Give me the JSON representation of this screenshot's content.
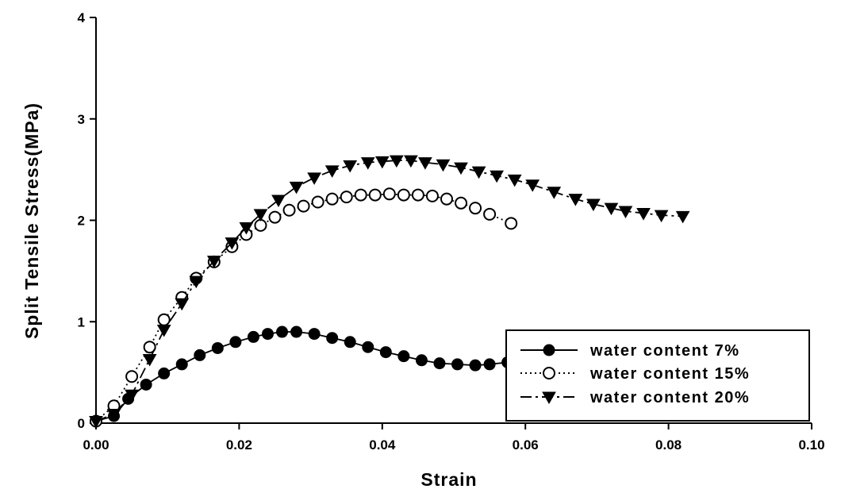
{
  "chart_data": {
    "type": "scatter",
    "xlabel": "Strain",
    "ylabel": "Split Tensile Stress(MPa)",
    "xlim": [
      0,
      0.1
    ],
    "ylim": [
      0,
      4
    ],
    "x_ticks": [
      "0.00",
      "0.02",
      "0.04",
      "0.06",
      "0.08",
      "0.10"
    ],
    "y_ticks": [
      "0",
      "1",
      "2",
      "3",
      "4"
    ],
    "grid": false,
    "legend_position": "bottom-right",
    "series": [
      {
        "name": "water content  7%",
        "marker": "filled-circle",
        "line": "solid",
        "x": [
          0.0,
          0.0025,
          0.0045,
          0.007,
          0.0095,
          0.012,
          0.0145,
          0.017,
          0.0195,
          0.022,
          0.024,
          0.026,
          0.028,
          0.0305,
          0.033,
          0.0355,
          0.038,
          0.0405,
          0.043,
          0.0455,
          0.048,
          0.0505,
          0.053,
          0.055,
          0.0575
        ],
        "y": [
          0.02,
          0.07,
          0.24,
          0.38,
          0.49,
          0.58,
          0.67,
          0.74,
          0.8,
          0.85,
          0.88,
          0.9,
          0.9,
          0.88,
          0.84,
          0.8,
          0.75,
          0.7,
          0.66,
          0.62,
          0.59,
          0.58,
          0.57,
          0.58,
          0.6
        ]
      },
      {
        "name": "water content 15%",
        "marker": "open-circle",
        "line": "dotted",
        "x": [
          0.0,
          0.0025,
          0.005,
          0.0075,
          0.0095,
          0.012,
          0.014,
          0.0165,
          0.019,
          0.021,
          0.023,
          0.025,
          0.027,
          0.029,
          0.031,
          0.033,
          0.035,
          0.037,
          0.039,
          0.041,
          0.043,
          0.045,
          0.047,
          0.049,
          0.051,
          0.053,
          0.055,
          0.058
        ],
        "y": [
          0.02,
          0.17,
          0.46,
          0.75,
          1.02,
          1.24,
          1.43,
          1.59,
          1.74,
          1.86,
          1.95,
          2.03,
          2.1,
          2.14,
          2.18,
          2.21,
          2.23,
          2.25,
          2.25,
          2.26,
          2.25,
          2.25,
          2.24,
          2.21,
          2.17,
          2.12,
          2.06,
          1.97
        ]
      },
      {
        "name": "water content 20%",
        "marker": "filled-triangle-down",
        "line": "dash-dot",
        "x": [
          0.0,
          0.0025,
          0.005,
          0.0075,
          0.0095,
          0.012,
          0.014,
          0.0165,
          0.019,
          0.021,
          0.023,
          0.0255,
          0.028,
          0.0305,
          0.033,
          0.0355,
          0.038,
          0.04,
          0.042,
          0.044,
          0.046,
          0.0485,
          0.051,
          0.0535,
          0.056,
          0.0585,
          0.061,
          0.064,
          0.067,
          0.0695,
          0.072,
          0.074,
          0.0765,
          0.079,
          0.082
        ],
        "y": [
          0.02,
          0.09,
          0.28,
          0.63,
          0.92,
          1.18,
          1.4,
          1.6,
          1.78,
          1.93,
          2.06,
          2.2,
          2.33,
          2.42,
          2.49,
          2.54,
          2.57,
          2.58,
          2.59,
          2.59,
          2.57,
          2.55,
          2.52,
          2.48,
          2.44,
          2.4,
          2.35,
          2.28,
          2.21,
          2.16,
          2.12,
          2.09,
          2.07,
          2.05,
          2.04
        ]
      }
    ]
  }
}
